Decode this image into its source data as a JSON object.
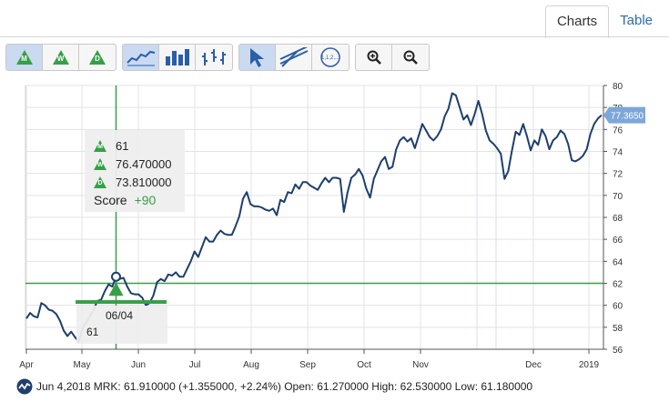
{
  "tabs": [
    {
      "label": "Charts"
    },
    {
      "label": "Table"
    }
  ],
  "toolbar": {
    "rating_buttons": [
      {
        "letter": "M"
      },
      {
        "letter": "W"
      },
      {
        "letter": "D"
      }
    ],
    "chart_type_icons": [
      "line-chart-icon",
      "bar-chart-icon",
      "ohlc-chart-icon"
    ],
    "tool_icons": [
      "pointer-icon",
      "trendline-icon",
      "fibonacci-icon"
    ],
    "fib_label": "1,1,2,...",
    "zoom_icons": [
      "zoom-in-icon",
      "zoom-out-icon"
    ]
  },
  "tooltip": {
    "rows": [
      {
        "letter": "M",
        "value": "61"
      },
      {
        "letter": "W",
        "value": "76.470000"
      },
      {
        "letter": "D",
        "value": "73.810000"
      }
    ],
    "score_label": "Score",
    "score_value": "+90"
  },
  "crosshair": {
    "date": "06/04",
    "score": "61"
  },
  "last_price_badge": "77.3650",
  "footer": {
    "text": "Jun 4,2018 MRK: 61.910000 (+1.355000, +2.24%) Open: 61.270000 High: 62.530000 Low: 61.180000"
  },
  "colors": {
    "line": "#1d3f6e",
    "accent": "#36a046",
    "badge": "#7da7d9",
    "grid": "#e3e3e3"
  },
  "chart_data": {
    "type": "line",
    "ylim": [
      56,
      80
    ],
    "yticks": [
      "56",
      "58",
      "60",
      "62",
      "64",
      "66",
      "68",
      "70",
      "72",
      "74",
      "76",
      "78",
      "80"
    ],
    "xticks": [
      "Apr",
      "May",
      "Jun",
      "Jul",
      "Aug",
      "Sep",
      "Oct",
      "Nov",
      "Dec",
      "2019"
    ],
    "horizontal_line": 62,
    "series": [
      {
        "values": [
          58.8,
          59.3,
          59.0,
          58.9,
          60.2,
          60.0,
          59.6,
          59.5,
          59.2,
          58.6,
          57.7,
          57.2,
          57.6,
          57.1,
          56.7,
          57.9,
          58.4,
          59.0,
          59.6,
          60.4,
          60.5,
          61.3,
          61.9,
          61.7,
          62.6,
          62.4,
          62.5,
          61.7,
          61.1,
          61.0,
          61.0,
          60.7,
          60.0,
          60.2,
          60.9,
          62.1,
          62.4,
          62.2,
          62.8,
          62.7,
          63.0,
          62.6,
          62.6,
          63.3,
          64.0,
          64.9,
          64.4,
          65.3,
          66.2,
          65.8,
          65.8,
          66.4,
          66.8,
          66.5,
          66.4,
          66.4,
          67.2,
          68.1,
          69.7,
          70.3,
          69.2,
          69.0,
          69.0,
          68.9,
          68.7,
          68.6,
          68.8,
          68.2,
          69.6,
          69.4,
          70.3,
          70.2,
          71.0,
          70.6,
          71.2,
          71.2,
          70.9,
          70.7,
          70.5,
          71.1,
          71.6,
          71.2,
          71.6,
          71.6,
          71.5,
          68.5,
          70.3,
          71.6,
          71.9,
          72.4,
          71.8,
          70.6,
          69.8,
          71.5,
          72.3,
          73.1,
          73.5,
          72.4,
          72.6,
          74.2,
          75.0,
          75.3,
          74.9,
          75.2,
          74.3,
          75.4,
          76.5,
          75.9,
          75.3,
          75.0,
          75.4,
          76.0,
          77.2,
          77.9,
          79.3,
          79.1,
          78.0,
          76.9,
          77.3,
          76.4,
          77.4,
          78.6,
          77.4,
          75.9,
          75.0,
          74.7,
          74.3,
          73.8,
          71.5,
          72.2,
          74.1,
          75.8,
          75.5,
          76.5,
          75.4,
          74.1,
          75.0,
          74.6,
          76.0,
          75.4,
          74.2,
          75.0,
          75.3,
          75.9,
          75.6,
          74.7,
          73.2,
          73.1,
          73.3,
          73.6,
          74.2,
          75.6,
          76.5,
          77.0,
          77.3
        ]
      }
    ]
  }
}
